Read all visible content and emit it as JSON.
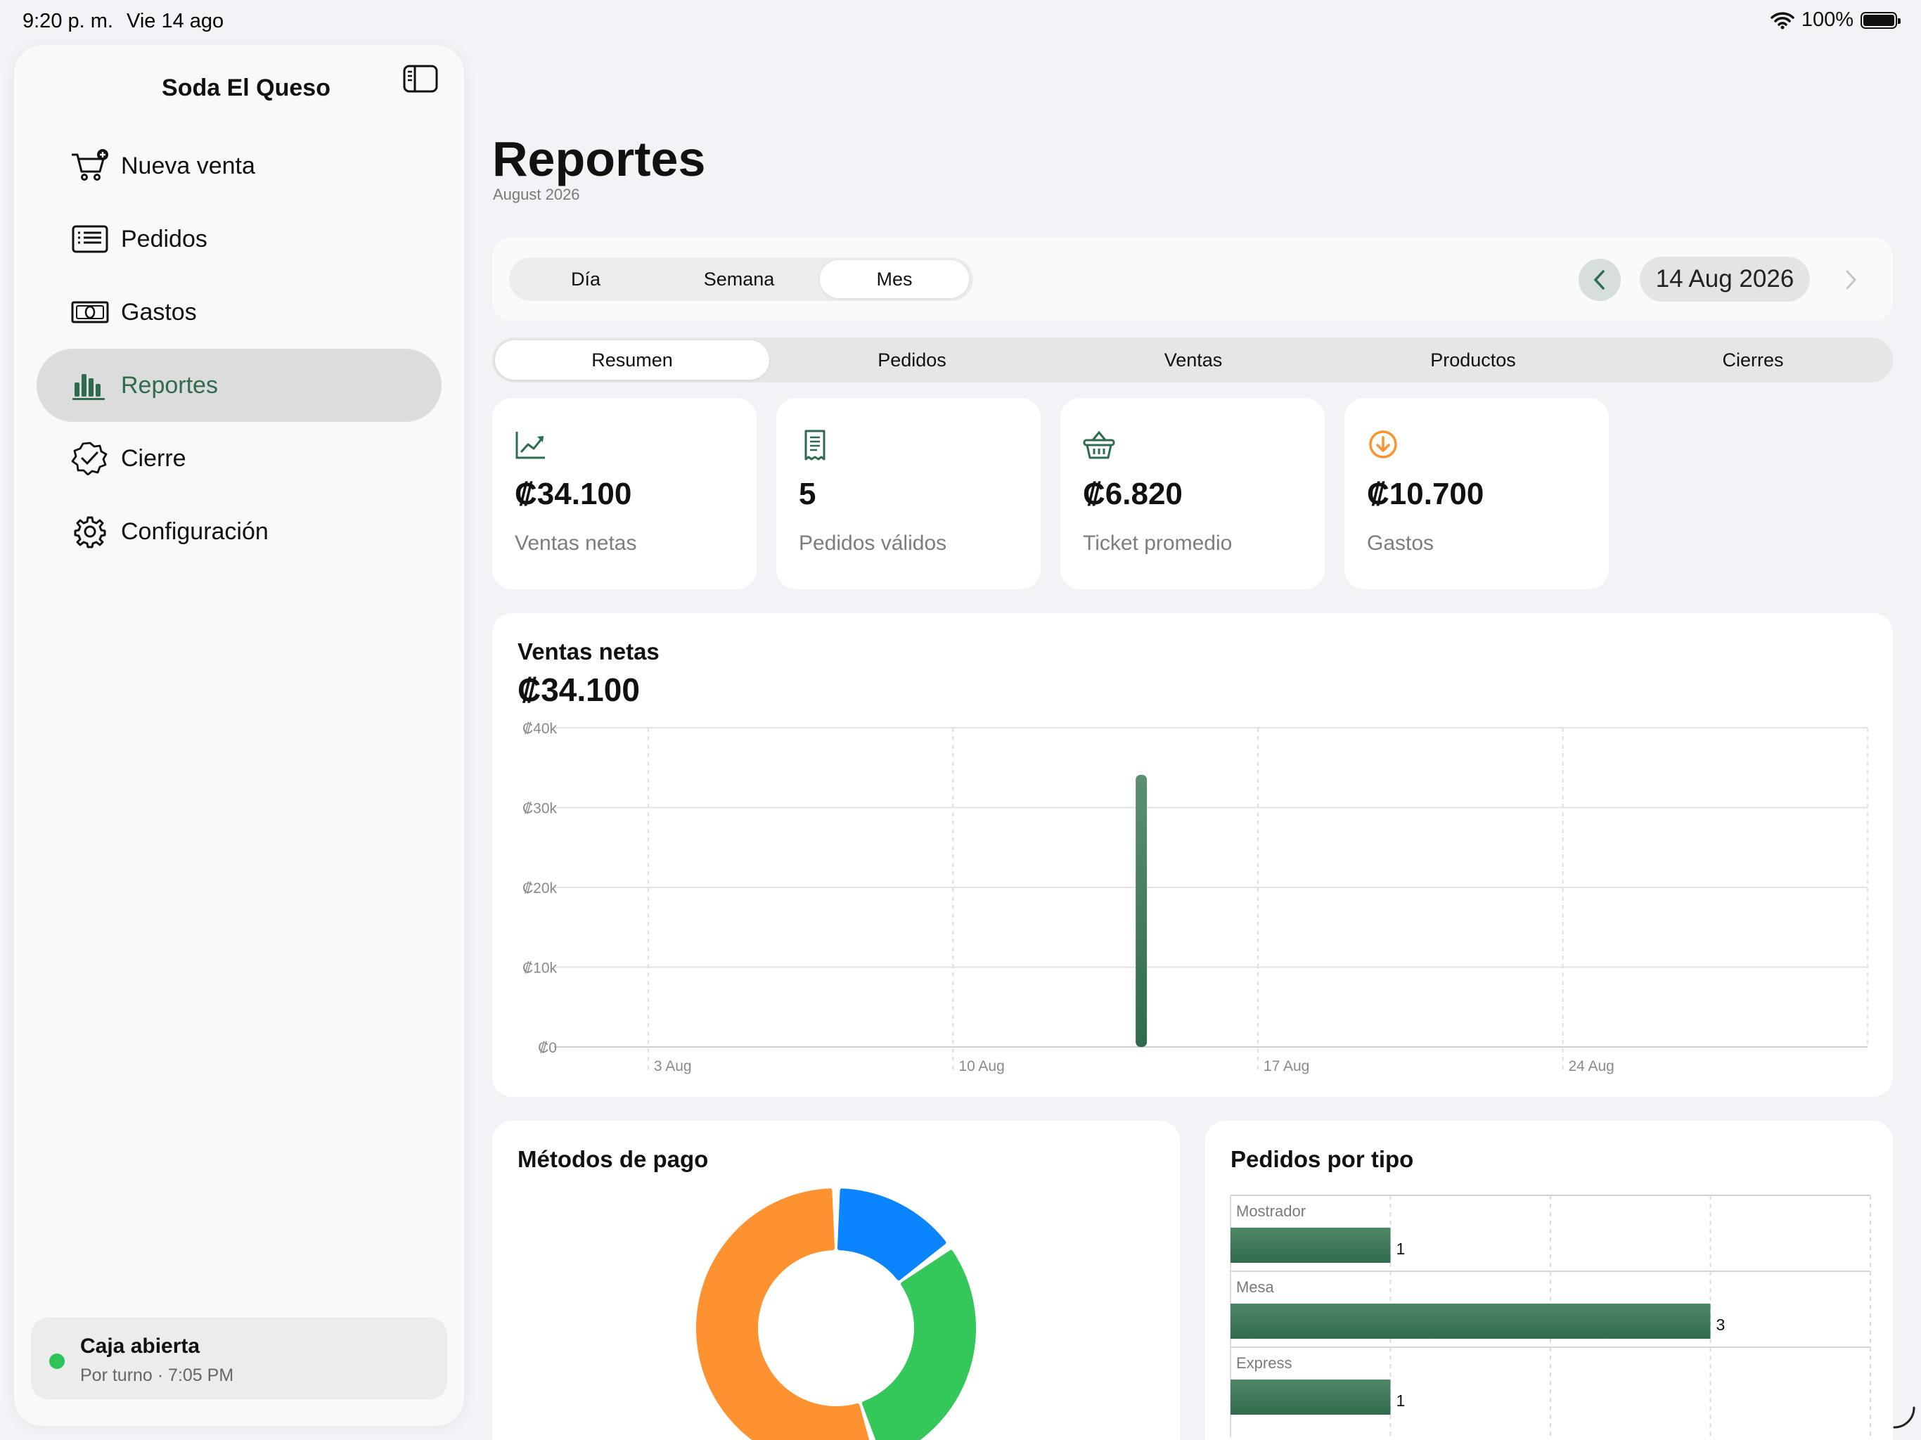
{
  "status_bar": {
    "time": "9:20 p. m.",
    "date": "Vie 14 ago",
    "battery": "100%",
    "battery_level": 1.0
  },
  "sidebar": {
    "title": "Soda El Queso",
    "items": [
      {
        "label": "Nueva venta",
        "icon": "cart-plus-icon"
      },
      {
        "label": "Pedidos",
        "icon": "list-icon"
      },
      {
        "label": "Gastos",
        "icon": "banknote-icon"
      },
      {
        "label": "Reportes",
        "icon": "bar-chart-icon",
        "active": true
      },
      {
        "label": "Cierre",
        "icon": "checkmark-seal-icon"
      },
      {
        "label": "Configuración",
        "icon": "gear-icon"
      }
    ],
    "status": {
      "title": "Caja abierta",
      "subtitle": "Por turno · 7:05 PM",
      "dot_color": "#2fc35a"
    }
  },
  "page": {
    "title": "Reportes",
    "subtitle": "August 2026"
  },
  "period": {
    "options": [
      "Día",
      "Semana",
      "Mes"
    ],
    "selected": "Mes",
    "date": "14 Aug 2026"
  },
  "tabs": {
    "items": [
      "Resumen",
      "Pedidos",
      "Ventas",
      "Productos",
      "Cierres"
    ],
    "selected": "Resumen"
  },
  "kpis": [
    {
      "value": "₡34.100",
      "label": "Ventas netas",
      "icon": "trend-up-icon"
    },
    {
      "value": "5",
      "label": "Pedidos válidos",
      "icon": "receipt-icon"
    },
    {
      "value": "₡6.820",
      "label": "Ticket promedio",
      "icon": "basket-icon"
    },
    {
      "value": "₡10.700",
      "label": "Gastos",
      "icon": "arrow-down-circle-icon"
    }
  ],
  "colors": {
    "accent_green": "#2f6b4c",
    "orange": "#ff9230",
    "blue": "#0a84ff",
    "green": "#34c759"
  },
  "chart_data": [
    {
      "type": "bar",
      "title": "Ventas netas",
      "total": "₡34.100",
      "ylim": [
        0,
        40000
      ],
      "yticks": [
        "₡0",
        "₡10k",
        "₡20k",
        "₡30k",
        "₡40k"
      ],
      "xlim": [
        1,
        31
      ],
      "xticks": [
        {
          "day": 3,
          "label": "3 Aug"
        },
        {
          "day": 10,
          "label": "10 Aug"
        },
        {
          "day": 17,
          "label": "17 Aug"
        },
        {
          "day": 24,
          "label": "24 Aug"
        }
      ],
      "points": [
        {
          "day": 14,
          "value": 34100
        }
      ],
      "grid": true
    },
    {
      "type": "pie",
      "title": "Métodos de pago",
      "slices": [
        {
          "color": "#0a84ff",
          "fraction": 0.15
        },
        {
          "color": "#34c759",
          "fraction": 0.3
        },
        {
          "color": "#ff9230",
          "fraction": 0.55
        }
      ]
    },
    {
      "type": "bar",
      "title": "Pedidos por tipo",
      "orientation": "horizontal",
      "categories": [
        "Mostrador",
        "Mesa",
        "Express"
      ],
      "values": [
        1,
        3,
        1
      ],
      "xticks": [
        0,
        1,
        2,
        3
      ],
      "xlim": [
        0,
        4
      ]
    }
  ]
}
